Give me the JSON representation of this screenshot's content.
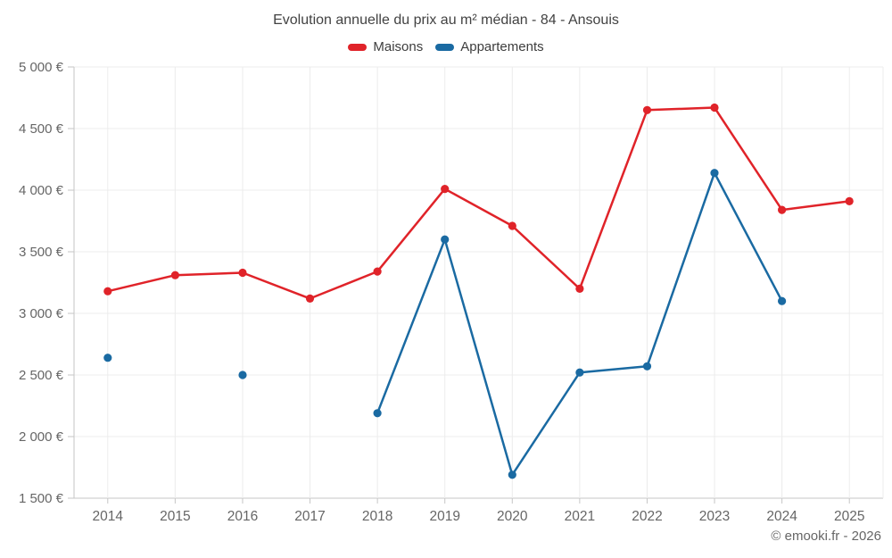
{
  "header": {
    "title": "Evolution annuelle du prix au m² médian - 84 - Ansouis"
  },
  "legend": {
    "items": [
      {
        "label": "Maisons",
        "color": "#e02329"
      },
      {
        "label": "Appartements",
        "color": "#1a6aa2"
      }
    ]
  },
  "footer": {
    "copyright": "© emooki.fr - 2026"
  },
  "colors": {
    "maisons": "#e02329",
    "appartements": "#1a6aa2",
    "gridline": "#ececec",
    "axis": "#c6c6c6",
    "tick_label": "#666666",
    "title_text": "#424242"
  },
  "chart_data": {
    "type": "line",
    "title": "Evolution annuelle du prix au m² médian - 84 - Ansouis",
    "categories": [
      "2014",
      "2015",
      "2016",
      "2017",
      "2018",
      "2019",
      "2020",
      "2021",
      "2022",
      "2023",
      "2024",
      "2025"
    ],
    "series": [
      {
        "name": "Maisons",
        "color": "#e02329",
        "values": [
          3180,
          3310,
          3330,
          3120,
          3340,
          4010,
          3710,
          3200,
          4650,
          4670,
          3840,
          3910
        ]
      },
      {
        "name": "Appartements",
        "color": "#1a6aa2",
        "values": [
          2640,
          null,
          2500,
          null,
          2190,
          3600,
          1690,
          2520,
          2570,
          4140,
          3100,
          null
        ]
      }
    ],
    "xlabel": "",
    "ylabel": "",
    "ylim": [
      1500,
      5000
    ],
    "ytick_step": 500,
    "ytick_suffix": " €",
    "grid": true,
    "legend_position": "top"
  }
}
